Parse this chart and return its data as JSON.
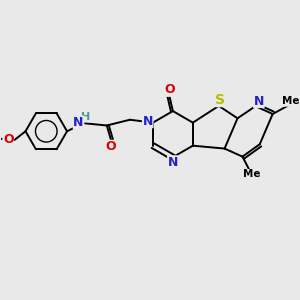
{
  "bg_color": "#e9e9e9",
  "atom_colors": {
    "C": "#000000",
    "N": "#2020cc",
    "O": "#dd0000",
    "S": "#bbbb00",
    "H": "#4a9999"
  },
  "bond_color": "#000000",
  "bond_width": 1.4
}
